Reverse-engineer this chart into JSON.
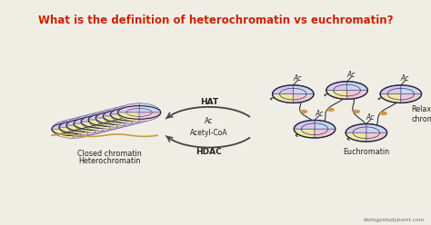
{
  "title": "What is the definition of heterochromatin vs euchromatin?",
  "title_color": "#CC2200",
  "title_bg": "#CCFF00",
  "bg_color": "#F0EDE5",
  "main_bg": "#F0EDE5",
  "watermark": "biologystudypoint.com",
  "labels": {
    "closed": "Closed chromatin",
    "hetero": "Heterochromatin",
    "hat": "HAT",
    "ac_center": "Ac\nAcetyl-CoA",
    "hdac": "HDAC",
    "relaxed": "Relaxed\nchromatin",
    "eu": "Euchromatin",
    "ac": "Ac"
  },
  "nuc_colors": [
    "#C8D8F0",
    "#D8C8E8",
    "#F0E8A0",
    "#F0C8D0"
  ],
  "nuc_edge": "#555599",
  "linker_color": "#CC9944",
  "dna_color": "#333333",
  "arrow_color": "#444444",
  "title_fontsize": 8.5,
  "label_fontsize": 5.8
}
